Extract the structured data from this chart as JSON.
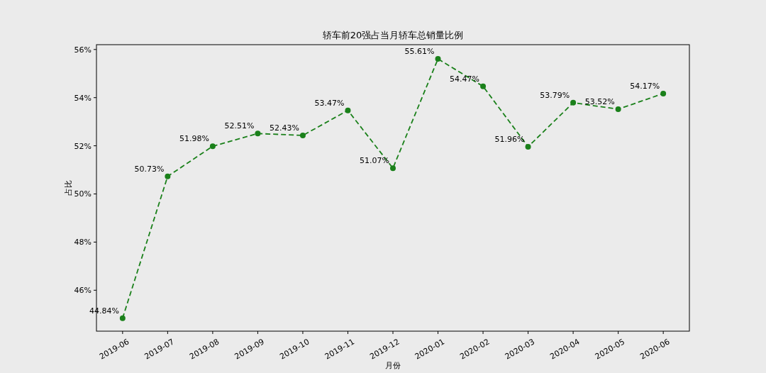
{
  "chart_data": {
    "type": "line",
    "title": "轿车前20强占当月轿车总销量比例",
    "xlabel": "月份",
    "ylabel": "占比",
    "categories": [
      "2019-06",
      "2019-07",
      "2019-08",
      "2019-09",
      "2019-10",
      "2019-11",
      "2019-12",
      "2020-01",
      "2020-02",
      "2020-03",
      "2020-04",
      "2020-05",
      "2020-06"
    ],
    "series": [
      {
        "color": "#1a801a",
        "values": [
          44.84,
          50.73,
          51.98,
          52.51,
          52.43,
          53.47,
          51.07,
          55.61,
          54.47,
          51.96,
          53.79,
          53.52,
          54.17
        ],
        "value_labels": [
          "44.84%",
          "50.73%",
          "51.98%",
          "52.51%",
          "52.43%",
          "53.47%",
          "51.07%",
          "55.61%",
          "54.47%",
          "51.96%",
          "53.79%",
          "53.52%",
          "54.17%"
        ]
      }
    ],
    "ylim": [
      44.3,
      56.2
    ],
    "yticks": [
      {
        "value": 46,
        "label": "46%"
      },
      {
        "value": 48,
        "label": "48%"
      },
      {
        "value": 50,
        "label": "50%"
      },
      {
        "value": 52,
        "label": "52%"
      },
      {
        "value": 54,
        "label": "54%"
      },
      {
        "value": 56,
        "label": "56%"
      }
    ],
    "marker": "circle",
    "line_style": "dashed",
    "grid": false
  }
}
